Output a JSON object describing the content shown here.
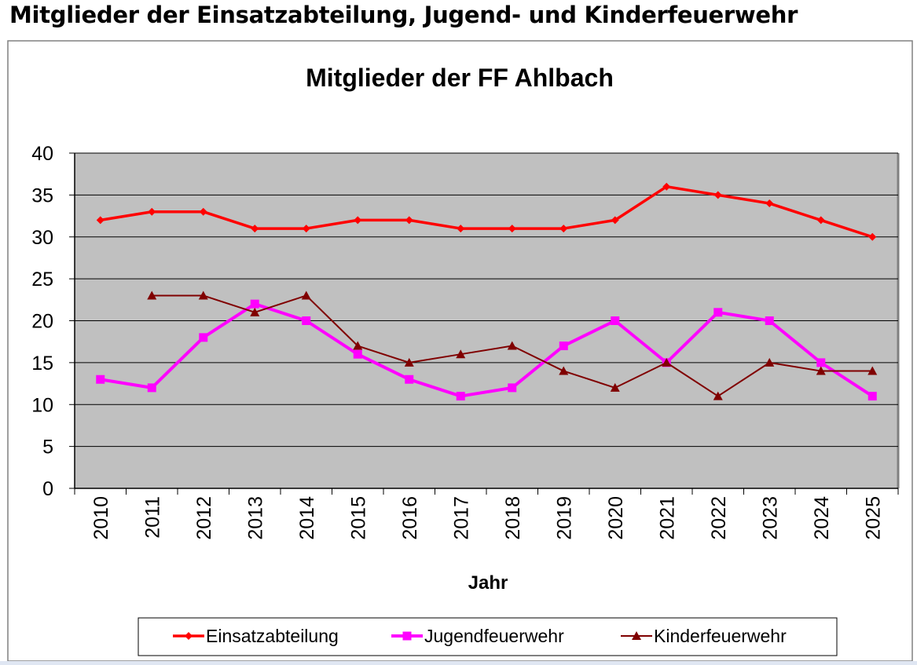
{
  "page_heading": "Mitglieder der Einsatzabteilung, Jugend- und Kinderfeuerwehr",
  "chart_data": {
    "type": "line",
    "title": "Mitglieder der FF Ahlbach",
    "xlabel": "Jahr",
    "ylabel": "",
    "categories": [
      "2010",
      "2011",
      "2012",
      "2013",
      "2014",
      "2015",
      "2016",
      "2017",
      "2018",
      "2019",
      "2020",
      "2021",
      "2022",
      "2023",
      "2024",
      "2025"
    ],
    "ylim": [
      0,
      40
    ],
    "yticks": [
      0,
      5,
      10,
      15,
      20,
      25,
      30,
      35,
      40
    ],
    "grid": true,
    "legend_position": "bottom",
    "plot_background": "#c0c0c0",
    "series": [
      {
        "name": "Einsatzabteilung",
        "color": "#ff0000",
        "marker": "diamond",
        "values": [
          32,
          33,
          33,
          31,
          31,
          32,
          32,
          31,
          31,
          31,
          32,
          36,
          35,
          34,
          32,
          30
        ]
      },
      {
        "name": "Jugendfeuerwehr",
        "color": "#ff00ff",
        "marker": "square",
        "values": [
          13,
          12,
          18,
          22,
          20,
          16,
          13,
          11,
          12,
          17,
          20,
          15,
          21,
          20,
          15,
          11
        ]
      },
      {
        "name": "Kinderfeuerwehr",
        "color": "#800000",
        "marker": "triangle",
        "values": [
          null,
          23,
          23,
          21,
          23,
          17,
          15,
          16,
          17,
          14,
          12,
          15,
          11,
          15,
          14,
          14
        ]
      }
    ]
  }
}
